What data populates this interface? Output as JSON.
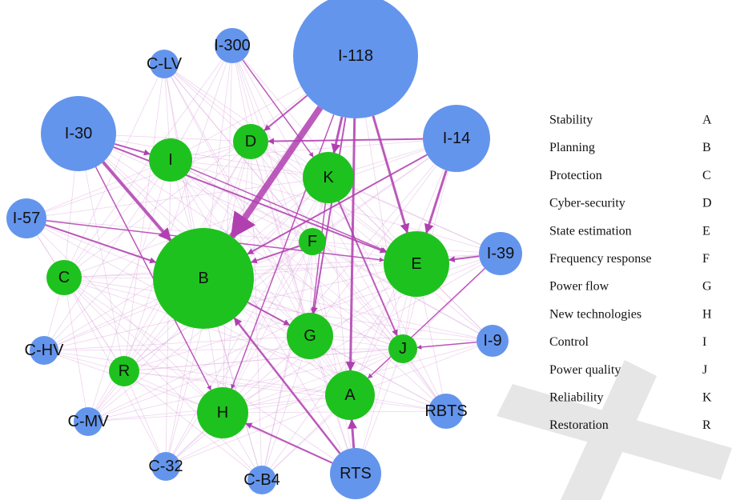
{
  "nodes": [
    {
      "label": "I-118"
    },
    {
      "label": "I-300"
    },
    {
      "label": "C-LV"
    },
    {
      "label": "I-30"
    },
    {
      "label": "I-14"
    },
    {
      "label": "I-57"
    },
    {
      "label": "I-39"
    },
    {
      "label": "C-HV"
    },
    {
      "label": "I-9"
    },
    {
      "label": "RBTS"
    },
    {
      "label": "C-MV"
    },
    {
      "label": "C-32"
    },
    {
      "label": "C-B4"
    },
    {
      "label": "RTS"
    },
    {
      "label": "D"
    },
    {
      "label": "I"
    },
    {
      "label": "K"
    },
    {
      "label": "B"
    },
    {
      "label": "F"
    },
    {
      "label": "E"
    },
    {
      "label": "C"
    },
    {
      "label": "G"
    },
    {
      "label": "J"
    },
    {
      "label": "R"
    },
    {
      "label": "A"
    },
    {
      "label": "H"
    }
  ],
  "legend": {
    "rows": [
      [
        "Stability",
        "A"
      ],
      [
        "Planning",
        "B"
      ],
      [
        "Protection",
        "C"
      ],
      [
        "Cyber-security",
        "D"
      ],
      [
        "State estimation",
        "E"
      ],
      [
        "Frequency response",
        "F"
      ],
      [
        "Power flow",
        "G"
      ],
      [
        "New technologies",
        "H"
      ],
      [
        "Control",
        "I"
      ],
      [
        "Power quality",
        "J"
      ],
      [
        "Reliability",
        "K"
      ],
      [
        "Restoration",
        "R"
      ]
    ]
  }
}
